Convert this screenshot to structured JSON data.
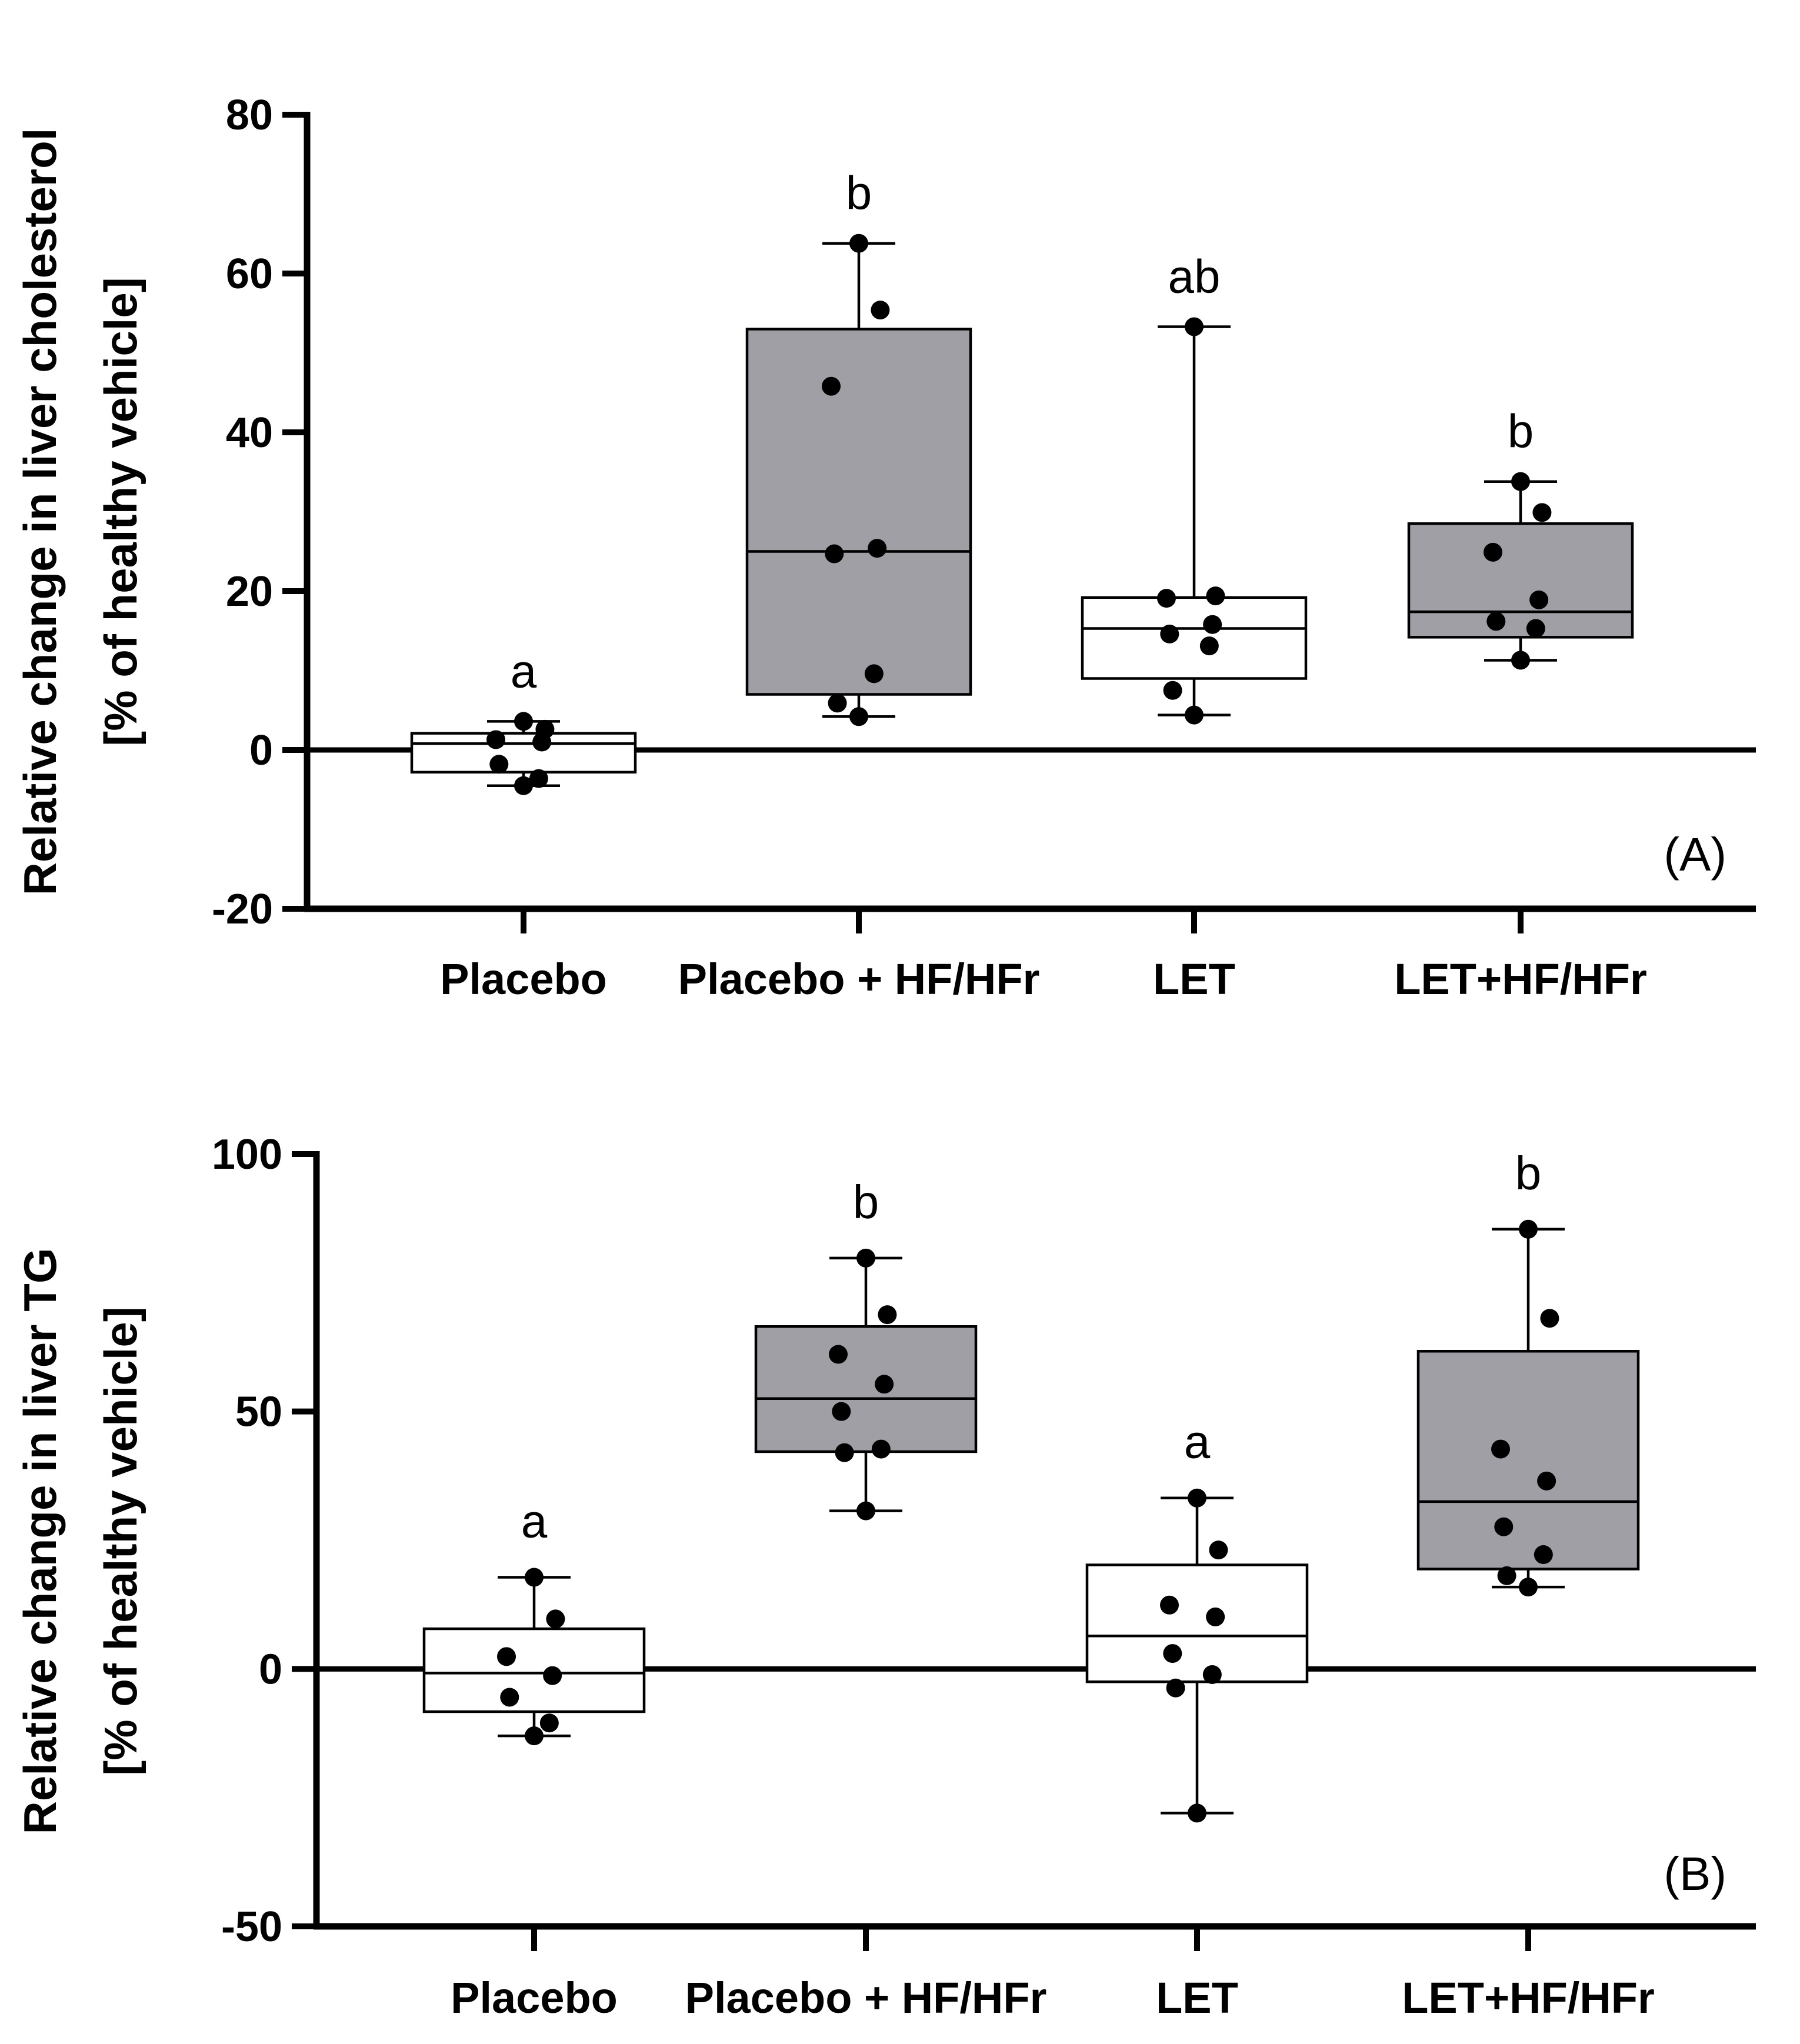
{
  "chart_data": [
    {
      "type": "box",
      "panel_label": "(A)",
      "ylabel_lines": [
        "Relative change in liver cholesterol",
        "[% of healthy vehicle]"
      ],
      "xlabel": "",
      "categories": [
        "Placebo",
        "Placebo + HF/HFr",
        "LET",
        "LET+HF/HFr"
      ],
      "ylim": [
        -20,
        80
      ],
      "yticks": [
        -20,
        0,
        20,
        40,
        60,
        80
      ],
      "colors": [
        "#ffffff",
        "#a09fa6",
        "#ffffff",
        "#a09fa6"
      ],
      "letters": [
        "a",
        "b",
        "ab",
        "b"
      ],
      "boxes": [
        {
          "min": -4.5,
          "q1": -2.8,
          "median": 0.8,
          "q3": 2.1,
          "max": 3.6,
          "points": [
            3.6,
            2.6,
            1.3,
            1.0,
            -1.8,
            -3.6,
            -4.5
          ]
        },
        {
          "min": 4.2,
          "q1": 7.0,
          "median": 25.0,
          "q3": 53.0,
          "max": 63.8,
          "points": [
            63.8,
            55.4,
            45.8,
            25.4,
            24.7,
            9.6,
            5.9,
            4.2
          ]
        },
        {
          "min": 4.4,
          "q1": 9.0,
          "median": 15.3,
          "q3": 19.2,
          "max": 53.3,
          "points": [
            53.3,
            19.4,
            19.1,
            15.8,
            14.6,
            13.1,
            7.5,
            4.4
          ]
        },
        {
          "min": 11.3,
          "q1": 14.2,
          "median": 17.4,
          "q3": 28.5,
          "max": 33.8,
          "points": [
            33.8,
            29.9,
            24.9,
            18.9,
            16.2,
            15.3,
            11.3
          ]
        }
      ]
    },
    {
      "type": "box",
      "panel_label": "(B)",
      "ylabel_lines": [
        "Relative change in liver TG",
        "[% of healthy vehicle]"
      ],
      "xlabel": "",
      "categories": [
        "Placebo",
        "Placebo + HF/HFr",
        "LET",
        "LET+HF/HFr"
      ],
      "ylim": [
        -50,
        100
      ],
      "yticks": [
        -50,
        0,
        50,
        100
      ],
      "colors": [
        "#ffffff",
        "#a09fa6",
        "#ffffff",
        "#a09fa6"
      ],
      "letters": [
        "a",
        "b",
        "a",
        "b"
      ],
      "boxes": [
        {
          "min": -13.0,
          "q1": -8.3,
          "median": -0.8,
          "q3": 7.8,
          "max": 17.8,
          "points": [
            17.8,
            9.7,
            2.4,
            -1.3,
            -5.5,
            -10.5,
            -13.0
          ]
        },
        {
          "min": 30.7,
          "q1": 42.2,
          "median": 52.5,
          "q3": 66.5,
          "max": 79.8,
          "points": [
            79.8,
            68.8,
            61.1,
            55.3,
            50.0,
            42.7,
            42.0,
            30.7
          ]
        },
        {
          "min": -28.0,
          "q1": -2.5,
          "median": 6.4,
          "q3": 20.2,
          "max": 33.2,
          "points": [
            33.2,
            23.1,
            12.4,
            10.1,
            3.0,
            -1.1,
            -3.7,
            -28.0
          ]
        },
        {
          "min": 15.9,
          "q1": 19.4,
          "median": 32.5,
          "q3": 61.7,
          "max": 85.4,
          "points": [
            85.4,
            68.1,
            42.7,
            36.5,
            27.6,
            22.2,
            18.1,
            15.9
          ]
        }
      ]
    }
  ]
}
